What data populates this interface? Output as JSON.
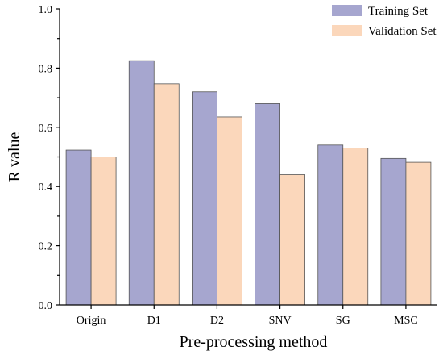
{
  "chart_data": {
    "type": "bar",
    "categories": [
      "Origin",
      "D1",
      "D2",
      "SNV",
      "SG",
      "MSC"
    ],
    "series": [
      {
        "name": "Training Set",
        "color": "#a6a6cf",
        "values": [
          0.523,
          0.825,
          0.72,
          0.68,
          0.54,
          0.495
        ]
      },
      {
        "name": "Validation Set",
        "color": "#fbd7bb",
        "values": [
          0.5,
          0.747,
          0.635,
          0.44,
          0.53,
          0.482
        ]
      }
    ],
    "title": "",
    "xlabel": "Pre-processing method",
    "ylabel": "R value",
    "ylim": [
      0,
      1.0
    ],
    "yticks": [
      "0.0",
      "0.2",
      "0.4",
      "0.6",
      "0.8",
      "1.0"
    ],
    "grid": false,
    "legend_position": "top-right"
  }
}
